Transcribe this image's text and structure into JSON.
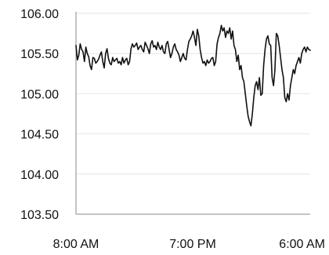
{
  "chart_data": {
    "type": "line",
    "title": "",
    "xlabel": "",
    "ylabel": "",
    "ylim": [
      103.5,
      106.0
    ],
    "yticks": [
      "106.00",
      "105.50",
      "105.00",
      "104.50",
      "104.00",
      "103.50"
    ],
    "ytick_values": [
      106.0,
      105.5,
      105.0,
      104.5,
      104.0,
      103.5
    ],
    "xticks": [
      "8:00 AM",
      "7:00 PM",
      "6:00 AM"
    ],
    "grid": true,
    "legend": "none",
    "colors": {
      "line": "#111111",
      "grid": "#e6e6e6",
      "axis": "#888888"
    },
    "series": [
      {
        "values": [
          105.6,
          105.42,
          105.48,
          105.62,
          105.55,
          105.52,
          105.4,
          105.58,
          105.5,
          105.46,
          105.35,
          105.3,
          105.45,
          105.44,
          105.38,
          105.4,
          105.43,
          105.48,
          105.52,
          105.4,
          105.32,
          105.5,
          105.56,
          105.44,
          105.38,
          105.36,
          105.45,
          105.4,
          105.42,
          105.44,
          105.38,
          105.4,
          105.36,
          105.45,
          105.38,
          105.42,
          105.44,
          105.36,
          105.4,
          105.56,
          105.62,
          105.58,
          105.6,
          105.63,
          105.55,
          105.58,
          105.6,
          105.55,
          105.52,
          105.64,
          105.6,
          105.56,
          105.5,
          105.62,
          105.66,
          105.58,
          105.6,
          105.55,
          105.64,
          105.58,
          105.55,
          105.6,
          105.52,
          105.5,
          105.62,
          105.65,
          105.55,
          105.45,
          105.5,
          105.58,
          105.62,
          105.55,
          105.52,
          105.48,
          105.4,
          105.45,
          105.5,
          105.44,
          105.42,
          105.55,
          105.65,
          105.68,
          105.72,
          105.78,
          105.7,
          105.6,
          105.8,
          105.72,
          105.55,
          105.45,
          105.38,
          105.4,
          105.35,
          105.42,
          105.38,
          105.4,
          105.44,
          105.45,
          105.35,
          105.4,
          105.62,
          105.7,
          105.75,
          105.85,
          105.78,
          105.82,
          105.7,
          105.78,
          105.75,
          105.82,
          105.68,
          105.78,
          105.6,
          105.55,
          105.4,
          105.48,
          105.3,
          105.35,
          105.2,
          105.15,
          105.0,
          104.85,
          104.72,
          104.65,
          104.6,
          104.75,
          104.95,
          105.1,
          105.15,
          105.05,
          105.2,
          104.98,
          105.0,
          105.35,
          105.55,
          105.68,
          105.72,
          105.62,
          105.6,
          105.2,
          105.1,
          105.3,
          105.75,
          105.72,
          105.6,
          105.45,
          105.3,
          105.2,
          104.95,
          104.9,
          105.0,
          104.92,
          105.1,
          105.2,
          105.3,
          105.25,
          105.35,
          105.4,
          105.45,
          105.38,
          105.5,
          105.55,
          105.58,
          105.52,
          105.58,
          105.55,
          105.54
        ]
      }
    ]
  }
}
